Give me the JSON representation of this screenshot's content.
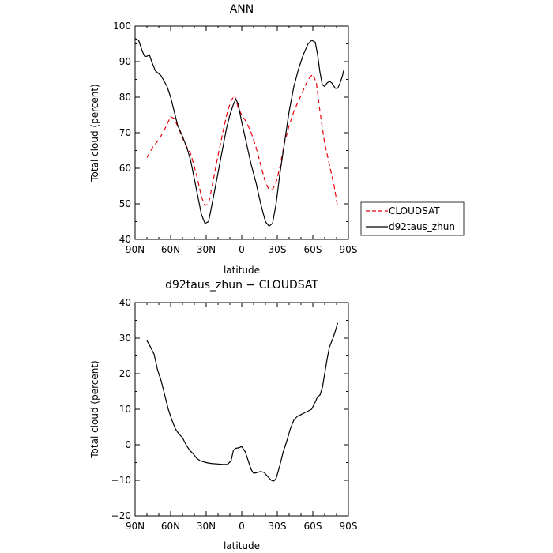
{
  "chart_data": [
    {
      "type": "line",
      "title": "ANN",
      "xlabel": "latitude",
      "ylabel": "Total cloud (percent)",
      "xlim": [
        90,
        -90
      ],
      "ylim": [
        40,
        100
      ],
      "xticks": [
        90,
        60,
        30,
        0,
        -30,
        -60,
        -90
      ],
      "xtick_labels": [
        "90N",
        "60N",
        "30N",
        "0",
        "30S",
        "60S",
        "90S"
      ],
      "yticks": [
        40,
        50,
        60,
        70,
        80,
        90,
        100
      ],
      "ytick_labels": [
        "40",
        "50",
        "60",
        "70",
        "80",
        "90",
        "100"
      ],
      "legend": {
        "placement": "right"
      },
      "series": [
        {
          "name": "CLOUDSAT",
          "color": "#e8000b",
          "dash": "dashed",
          "points": [
            [
              80,
              63
            ],
            [
              75,
              66
            ],
            [
              70,
              68
            ],
            [
              65,
              71
            ],
            [
              60,
              74.5
            ],
            [
              57,
              74
            ],
            [
              53,
              71
            ],
            [
              48,
              67
            ],
            [
              43,
              64
            ],
            [
              38,
              58
            ],
            [
              34,
              52
            ],
            [
              31,
              49.5
            ],
            [
              28,
              50
            ],
            [
              25,
              55
            ],
            [
              21,
              62
            ],
            [
              16,
              70
            ],
            [
              12,
              76
            ],
            [
              9,
              79
            ],
            [
              6,
              80.5
            ],
            [
              3,
              77
            ],
            [
              0,
              75
            ],
            [
              -4,
              73
            ],
            [
              -8,
              70
            ],
            [
              -12,
              66
            ],
            [
              -16,
              61
            ],
            [
              -20,
              56
            ],
            [
              -23,
              54
            ],
            [
              -26,
              54
            ],
            [
              -29,
              56
            ],
            [
              -32,
              60
            ],
            [
              -36,
              67
            ],
            [
              -40,
              72
            ],
            [
              -44,
              76
            ],
            [
              -48,
              79
            ],
            [
              -52,
              82
            ],
            [
              -56,
              85
            ],
            [
              -60,
              86.5
            ],
            [
              -63,
              84
            ],
            [
              -66,
              76
            ],
            [
              -70,
              67
            ],
            [
              -74,
              61
            ],
            [
              -78,
              55
            ],
            [
              -81,
              49
            ]
          ]
        },
        {
          "name": "d92taus_zhun",
          "color": "#000000",
          "dash": "solid",
          "points": [
            [
              90,
              96.5
            ],
            [
              87,
              96
            ],
            [
              84,
              93
            ],
            [
              82,
              91.5
            ],
            [
              80,
              91.5
            ],
            [
              78,
              92
            ],
            [
              76,
              90
            ],
            [
              73,
              87.5
            ],
            [
              68,
              86
            ],
            [
              63,
              83
            ],
            [
              60,
              80
            ],
            [
              57,
              76
            ],
            [
              54,
              72
            ],
            [
              50,
              69
            ],
            [
              46,
              65.5
            ],
            [
              43,
              62
            ],
            [
              40,
              57
            ],
            [
              37,
              52
            ],
            [
              34,
              47
            ],
            [
              31,
              44.5
            ],
            [
              28,
              45
            ],
            [
              25,
              50
            ],
            [
              21,
              57
            ],
            [
              17,
              64
            ],
            [
              13,
              71
            ],
            [
              10,
              75
            ],
            [
              7,
              78
            ],
            [
              5,
              79.5
            ],
            [
              3,
              78
            ],
            [
              0,
              73
            ],
            [
              -4,
              67
            ],
            [
              -8,
              61
            ],
            [
              -12,
              56
            ],
            [
              -16,
              50
            ],
            [
              -20,
              45
            ],
            [
              -23,
              43.7
            ],
            [
              -26,
              44.5
            ],
            [
              -29,
              50
            ],
            [
              -32,
              58
            ],
            [
              -36,
              67
            ],
            [
              -40,
              76
            ],
            [
              -44,
              83
            ],
            [
              -48,
              88
            ],
            [
              -52,
              92
            ],
            [
              -56,
              95
            ],
            [
              -59,
              96
            ],
            [
              -62,
              95.5
            ],
            [
              -64,
              92
            ],
            [
              -66,
              87
            ],
            [
              -68,
              83.5
            ],
            [
              -70,
              83
            ],
            [
              -72,
              84
            ],
            [
              -74,
              84.5
            ],
            [
              -76,
              84
            ],
            [
              -79,
              82.5
            ],
            [
              -81,
              82.5
            ],
            [
              -83,
              84
            ],
            [
              -85,
              86
            ],
            [
              -86,
              87.5
            ]
          ]
        }
      ]
    },
    {
      "type": "line",
      "title": "d92taus_zhun − CLOUDSAT",
      "xlabel": "latitude",
      "ylabel": "Total cloud (percent)",
      "xlim": [
        90,
        -90
      ],
      "ylim": [
        -20,
        40
      ],
      "xticks": [
        90,
        60,
        30,
        0,
        -30,
        -60,
        -90
      ],
      "xtick_labels": [
        "90N",
        "60N",
        "30N",
        "0",
        "30S",
        "60S",
        "90S"
      ],
      "yticks": [
        -20,
        -10,
        0,
        10,
        20,
        30,
        40
      ],
      "ytick_labels": [
        "−20",
        "−10",
        "0",
        "10",
        "20",
        "30",
        "40"
      ],
      "series": [
        {
          "color": "#000000",
          "dash": "solid",
          "points": [
            [
              80,
              29.3
            ],
            [
              77,
              27.5
            ],
            [
              74,
              25.5
            ],
            [
              71,
              21
            ],
            [
              68,
              18
            ],
            [
              65,
              14
            ],
            [
              62,
              10
            ],
            [
              59,
              7
            ],
            [
              56,
              4.5
            ],
            [
              53,
              3
            ],
            [
              50,
              2
            ],
            [
              47,
              0
            ],
            [
              44,
              -1.5
            ],
            [
              41,
              -2.5
            ],
            [
              38,
              -3.8
            ],
            [
              35,
              -4.5
            ],
            [
              32,
              -4.8
            ],
            [
              30,
              -5
            ],
            [
              27,
              -5.2
            ],
            [
              24,
              -5.3
            ],
            [
              20,
              -5.4
            ],
            [
              16,
              -5.5
            ],
            [
              12,
              -5.5
            ],
            [
              9,
              -4.5
            ],
            [
              7,
              -1.5
            ],
            [
              5,
              -1
            ],
            [
              2,
              -0.8
            ],
            [
              0,
              -0.5
            ],
            [
              -3,
              -2
            ],
            [
              -6,
              -5
            ],
            [
              -8,
              -7
            ],
            [
              -10,
              -8
            ],
            [
              -13,
              -7.8
            ],
            [
              -16,
              -7.5
            ],
            [
              -19,
              -7.8
            ],
            [
              -22,
              -9
            ],
            [
              -25,
              -10
            ],
            [
              -27,
              -10.2
            ],
            [
              -29,
              -9.5
            ],
            [
              -32,
              -6
            ],
            [
              -35,
              -2
            ],
            [
              -38,
              1
            ],
            [
              -41,
              4.5
            ],
            [
              -44,
              7
            ],
            [
              -47,
              8
            ],
            [
              -50,
              8.5
            ],
            [
              -53,
              9
            ],
            [
              -56,
              9.5
            ],
            [
              -59,
              10
            ],
            [
              -62,
              12
            ],
            [
              -64,
              13.5
            ],
            [
              -66,
              14
            ],
            [
              -68,
              16
            ],
            [
              -70,
              20
            ],
            [
              -72,
              24
            ],
            [
              -74,
              27.5
            ],
            [
              -77,
              30
            ],
            [
              -79,
              32
            ],
            [
              -81,
              34.3
            ]
          ]
        }
      ]
    }
  ]
}
